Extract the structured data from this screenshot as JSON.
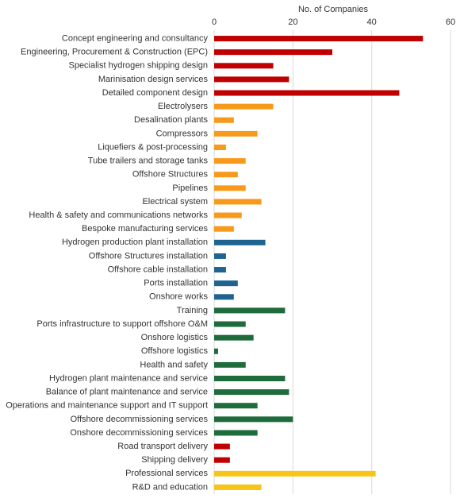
{
  "chart_data": {
    "type": "hbar",
    "x_label": "No. of Companies",
    "categories": [
      "Concept engineering and consultancy",
      "Engineering, Procurement & Construction (EPC)",
      "Specialist hydrogen shipping design",
      "Marinisation design services",
      "Detailed component design",
      "Electrolysers",
      "Desalination plants",
      "Compressors",
      "Liquefiers & post-processing",
      "Tube trailers and storage tanks",
      "Offshore Structures",
      "Pipelines",
      "Electrical system",
      "Health & safety and communications networks",
      "Bespoke manufacturing services",
      "Hydrogen production plant installation",
      "Offshore Structures installation",
      "Offshore cable installation",
      "Ports installation",
      "Onshore works",
      "Training",
      "Ports infrastructure to support offshore O&M",
      "Onshore logistics",
      "Offshore logistics",
      "Health and safety",
      "Hydrogen plant maintenance and service",
      "Balance of plant maintenance and service",
      "Operations and maintenance support and IT support",
      "Offshore decommissioning services",
      "Onshore decommissioning services",
      "Road transport delivery",
      "Shipping delivery",
      "Professional services",
      "R&D and education"
    ],
    "values": [
      53,
      30,
      15,
      19,
      47,
      15,
      5,
      11,
      3,
      8,
      6,
      8,
      12,
      7,
      5,
      13,
      3,
      3,
      6,
      5,
      18,
      8,
      10,
      1,
      8,
      18,
      19,
      11,
      20,
      11,
      4,
      4,
      41,
      12
    ],
    "colors": [
      "#c00000",
      "#c00000",
      "#c00000",
      "#c00000",
      "#c00000",
      "#f79a1c",
      "#f79a1c",
      "#f79a1c",
      "#f79a1c",
      "#f79a1c",
      "#f79a1c",
      "#f79a1c",
      "#f79a1c",
      "#f79a1c",
      "#f79a1c",
      "#1f6391",
      "#1f6391",
      "#1f6391",
      "#1f6391",
      "#1f6391",
      "#1e6b3c",
      "#1e6b3c",
      "#1e6b3c",
      "#1e6b3c",
      "#1e6b3c",
      "#1e6b3c",
      "#1e6b3c",
      "#1e6b3c",
      "#1e6b3c",
      "#1e6b3c",
      "#c00000",
      "#c00000",
      "#f5c518",
      "#f5c518"
    ],
    "xlim": [
      0,
      60
    ],
    "xticks": [
      0,
      20,
      40,
      60
    ],
    "grid": true
  }
}
